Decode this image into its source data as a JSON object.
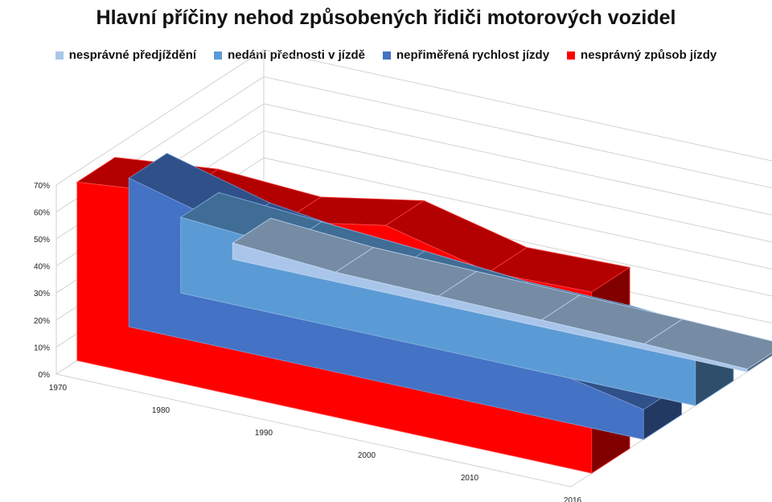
{
  "chart_data": {
    "type": "area",
    "subtype": "3d-area",
    "title": "Hlavní příčiny nehod způsobených řidiči motorových vozidel",
    "categories": [
      "1970",
      "1980",
      "1990",
      "2000",
      "2010",
      "2016"
    ],
    "yticks": [
      "0%",
      "10%",
      "20%",
      "30%",
      "40%",
      "50%",
      "60%",
      "70%"
    ],
    "ylim": [
      0,
      70
    ],
    "legend_position": "top",
    "series": [
      {
        "name": "nesprávné předjíždění",
        "values": [
          6,
          3.5,
          3,
          2.5,
          2,
          1
        ],
        "color": "#a9c6ea"
      },
      {
        "name": "nedání přednosti v jízdě",
        "values": [
          28,
          25.5,
          23,
          20,
          19.5,
          17
        ],
        "color": "#5b9bd5"
      },
      {
        "name": "nepřiměřená rychlost jízdy",
        "values": [
          55,
          45,
          40,
          18,
          19,
          11
        ],
        "color": "#4472c4"
      },
      {
        "name": "nesprávný způsob jízdy",
        "values": [
          66,
          70,
          68,
          75,
          66,
          67
        ],
        "color": "#ff0000"
      }
    ]
  }
}
